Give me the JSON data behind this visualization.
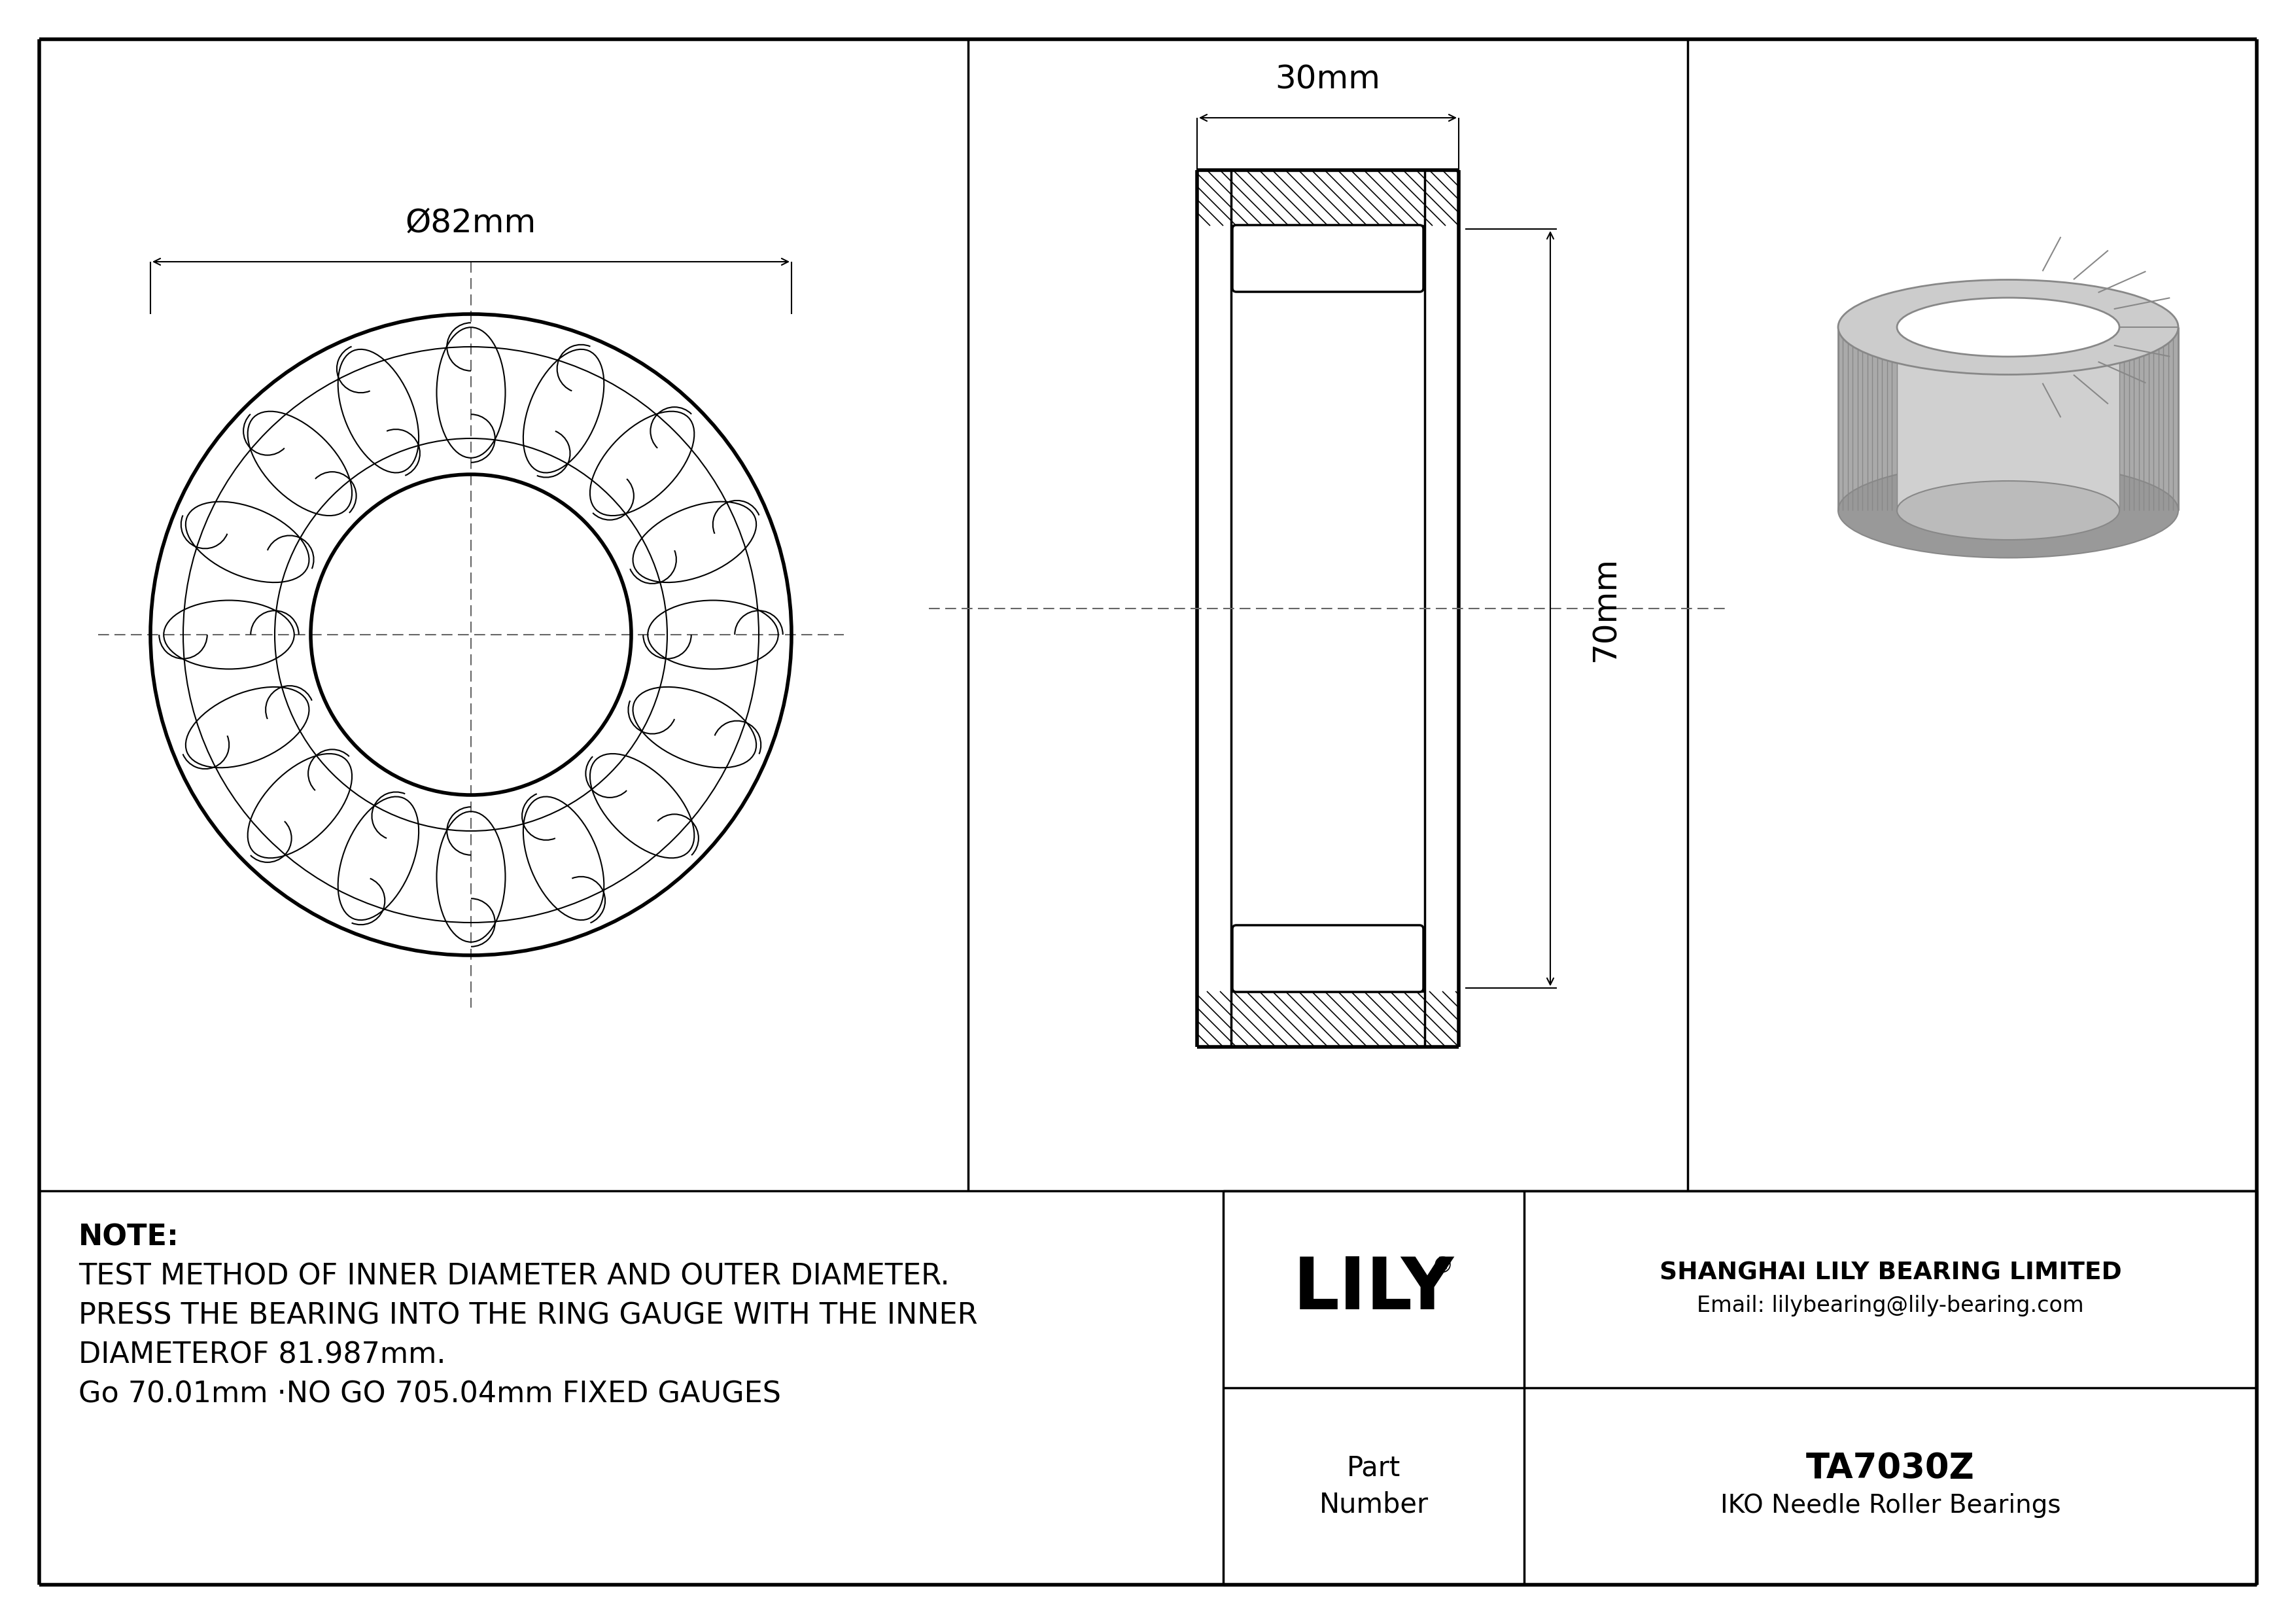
{
  "bg_color": "#ffffff",
  "line_color": "#000000",
  "dim_82mm": "Ø82mm",
  "dim_30mm": "30mm",
  "dim_70mm": "70mm",
  "note_line1": "NOTE:",
  "note_line2": "TEST METHOD OF INNER DIAMETER AND OUTER DIAMETER.",
  "note_line3": "PRESS THE BEARING INTO THE RING GAUGE WITH THE INNER",
  "note_line4": "DIAMETEROF 81.987mm.",
  "note_line5": "Go 70.01mm ·NO GO 705.04mm FIXED GAUGES",
  "company_line1": "SHANGHAI LILY BEARING LIMITED",
  "company_line2": "Email: lilybearing@lily-bearing.com",
  "part_label": "Part\nNumber",
  "part_number": "TA7030Z",
  "part_type": "IKO Needle Roller Bearings",
  "gray_color": "#aaaaaa",
  "dark_gray": "#888888",
  "light_gray": "#cccccc"
}
